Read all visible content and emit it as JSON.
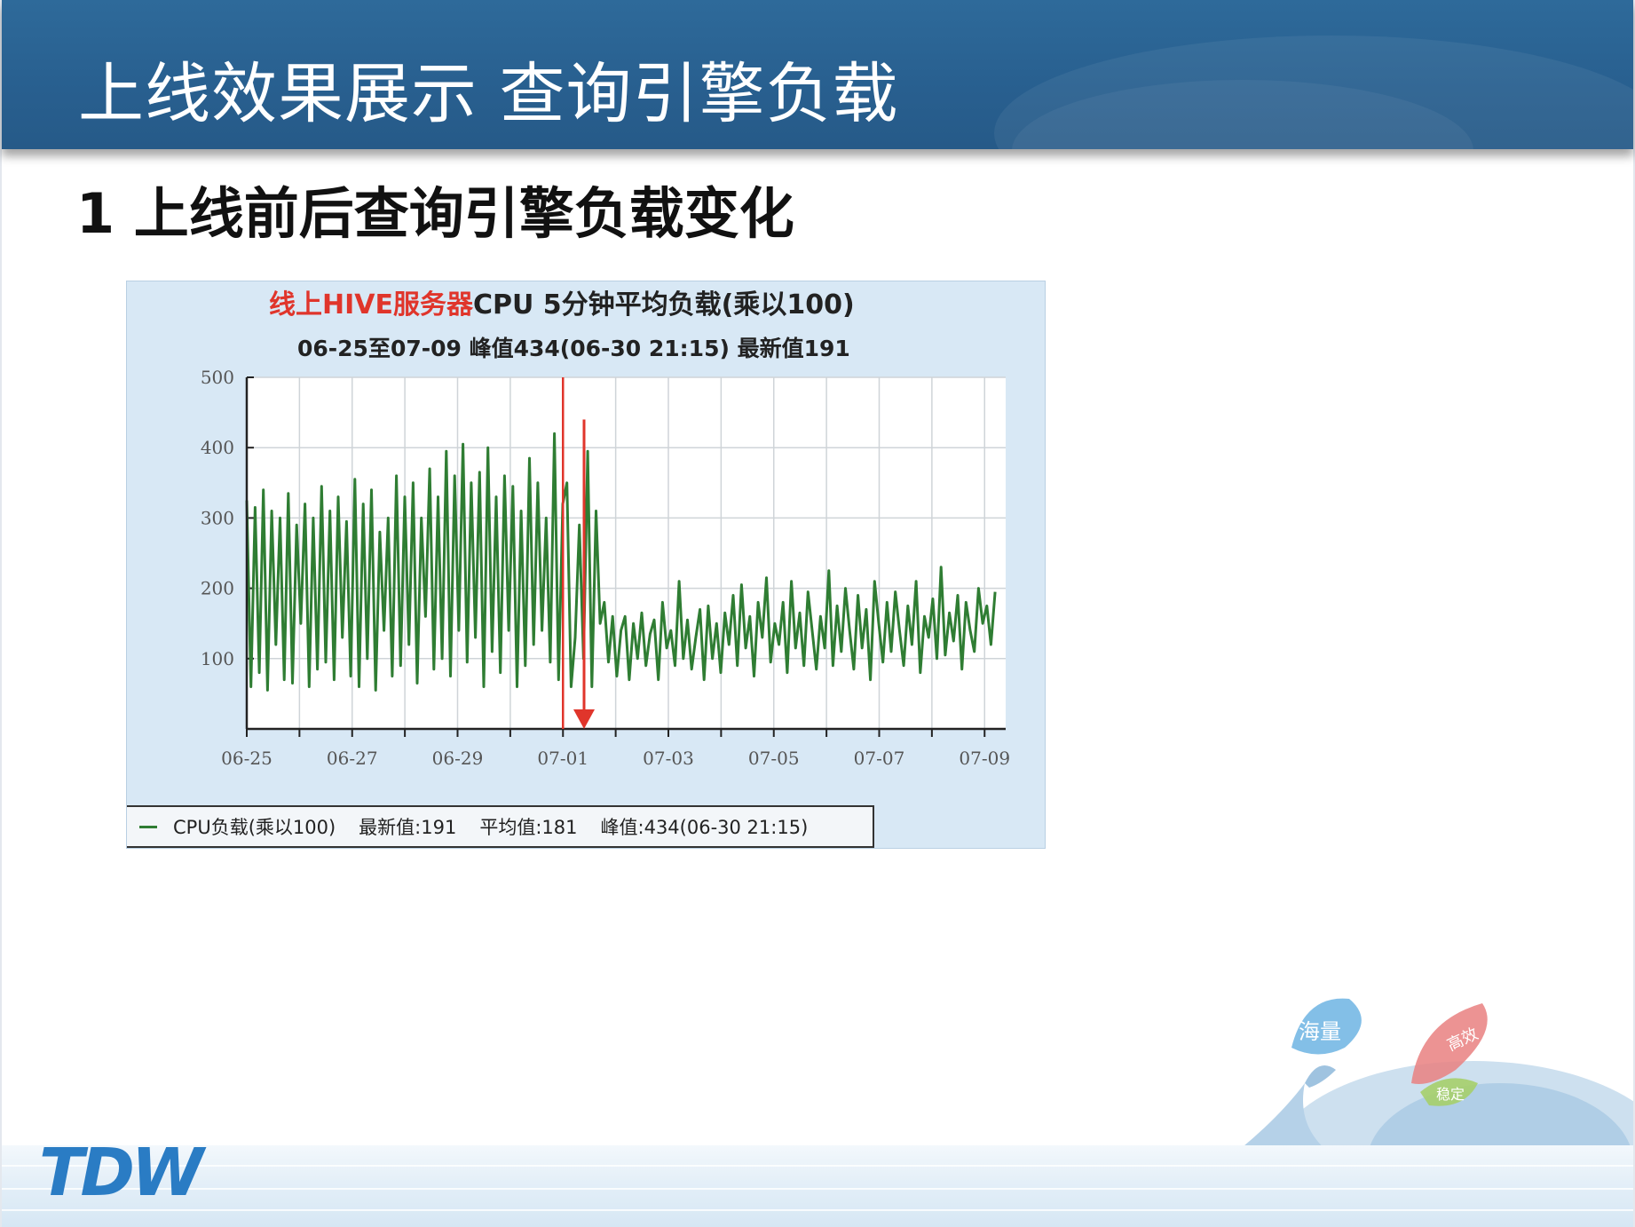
{
  "slide": {
    "title": "上线效果展示  查询引擎负载",
    "subtitle": "1 上线前后查询引擎负载变化"
  },
  "logo": {
    "text": "TDW"
  },
  "decor": {
    "bubble_labels": [
      "海量",
      "高效",
      "稳定"
    ]
  },
  "chart_data": {
    "type": "line",
    "title_prefix": "线上HIVE服务器",
    "title_rest": "CPU 5分钟平均负载(乘以100)",
    "subtitle": "06-25至07-09  峰值434(06-30 21:15)  最新值191",
    "x_tick_labels": [
      "06-25",
      "06-27",
      "06-29",
      "07-01",
      "07-03",
      "07-05",
      "07-07",
      "07-09"
    ],
    "x_range_days": [
      0,
      14.4
    ],
    "ylim": [
      0,
      500
    ],
    "y_ticks": [
      100,
      200,
      300,
      400,
      500
    ],
    "grid": true,
    "series": [
      {
        "name": "CPU负载(乘以100)",
        "color": "#2f7d33",
        "values": [
          325,
          60,
          315,
          80,
          340,
          55,
          310,
          120,
          300,
          70,
          335,
          65,
          290,
          150,
          320,
          60,
          300,
          85,
          345,
          95,
          310,
          70,
          330,
          130,
          295,
          75,
          355,
          60,
          320,
          100,
          340,
          55,
          280,
          140,
          300,
          75,
          360,
          90,
          330,
          120,
          350,
          65,
          300,
          160,
          370,
          85,
          330,
          100,
          395,
          75,
          360,
          140,
          405,
          95,
          350,
          130,
          365,
          60,
          400,
          110,
          330,
          80,
          360,
          140,
          345,
          60,
          310,
          90,
          385,
          120,
          350,
          140,
          300,
          95,
          420,
          70,
          320,
          350,
          60,
          130,
          290,
          100,
          395,
          60,
          310,
          150,
          180,
          95,
          160,
          75,
          140,
          160,
          70,
          150,
          100,
          165,
          90,
          135,
          155,
          70,
          180,
          115,
          140,
          90,
          210,
          100,
          155,
          85,
          130,
          170,
          70,
          175,
          100,
          150,
          80,
          165,
          120,
          190,
          90,
          205,
          115,
          160,
          75,
          180,
          130,
          215,
          95,
          150,
          120,
          180,
          80,
          210,
          115,
          165,
          90,
          195,
          140,
          85,
          160,
          115,
          225,
          90,
          175,
          110,
          200,
          140,
          85,
          190,
          115,
          170,
          70,
          210,
          150,
          95,
          180,
          110,
          195,
          140,
          90,
          175,
          120,
          210,
          80,
          160,
          130,
          185,
          100,
          230,
          105,
          165,
          125,
          190,
          85,
          180,
          140,
          110,
          200,
          150,
          175,
          120,
          195
        ]
      }
    ],
    "annotations": {
      "red_line_at_day": 6.0,
      "red_arrow_at_day": 6.4,
      "red_arrow_from": 440,
      "red_arrow_to": 0
    },
    "legend": {
      "series_label": "CPU负载(乘以100)",
      "latest": "最新值:191",
      "average": "平均值:181",
      "peak": "峰值:434(06-30 21:15)"
    }
  }
}
